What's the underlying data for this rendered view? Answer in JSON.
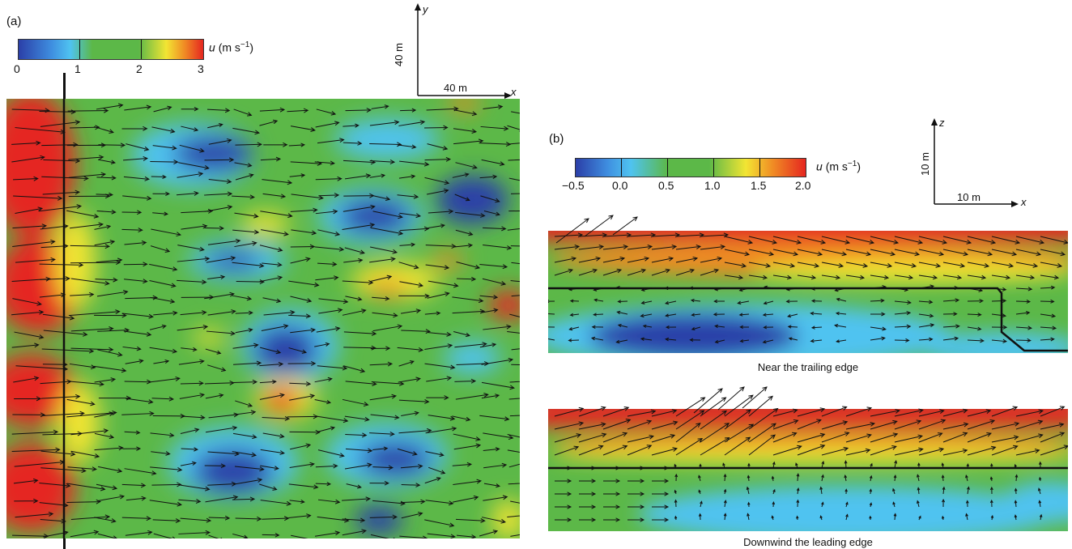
{
  "panel_a": {
    "label": "(a)",
    "colorbar": {
      "quantity": "u",
      "unit": "(m s",
      "unit_exp": "−1",
      "unit_close": ")",
      "ticks": [
        "0",
        "1",
        "2",
        "3"
      ]
    },
    "scale_bar": {
      "vertical": "40 m",
      "horizontal": "40 m",
      "x_axis": "x",
      "y_axis": "y"
    }
  },
  "panel_b": {
    "label": "(b)",
    "colorbar": {
      "quantity": "u",
      "unit": "(m s",
      "unit_exp": "−1",
      "unit_close": ")",
      "ticks": [
        "−0.5",
        "0.0",
        "0.5",
        "1.0",
        "1.5",
        "2.0"
      ]
    },
    "scale_bar": {
      "vertical": "10 m",
      "horizontal": "10 m",
      "x_axis": "x",
      "z_axis": "z"
    },
    "captions": [
      "Near the trailing edge",
      "Downwind the leading edge"
    ]
  },
  "colors": {
    "low": "#2b3fa8",
    "cyan": "#4fc3f0",
    "mid": "#5cb848",
    "yellow": "#f2e533",
    "high": "#e52620"
  }
}
